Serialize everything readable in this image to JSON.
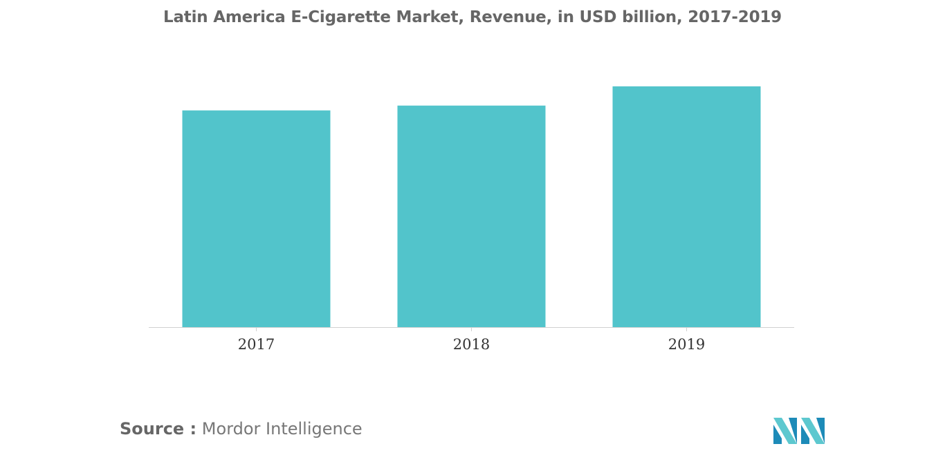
{
  "chart_data": {
    "type": "bar",
    "title": "Latin America E-Cigarette Market, Revenue, in USD billion, 2017-2019",
    "categories": [
      "2017",
      "2018",
      "2019"
    ],
    "values": [
      0.9,
      0.92,
      1.0
    ],
    "xlabel": "",
    "ylabel": "",
    "ylim": [
      0,
      1.1
    ],
    "grid": false,
    "legend": "none",
    "colors": {
      "bar": "#52c4cb",
      "axis": "#d0d0d0"
    }
  },
  "source": {
    "prefix": "Source :",
    "text": "Mordor Intelligence"
  },
  "logo": {
    "icon": "mordor-intelligence-logo",
    "colors": [
      "#1d8bb8",
      "#5dc8cf"
    ]
  }
}
